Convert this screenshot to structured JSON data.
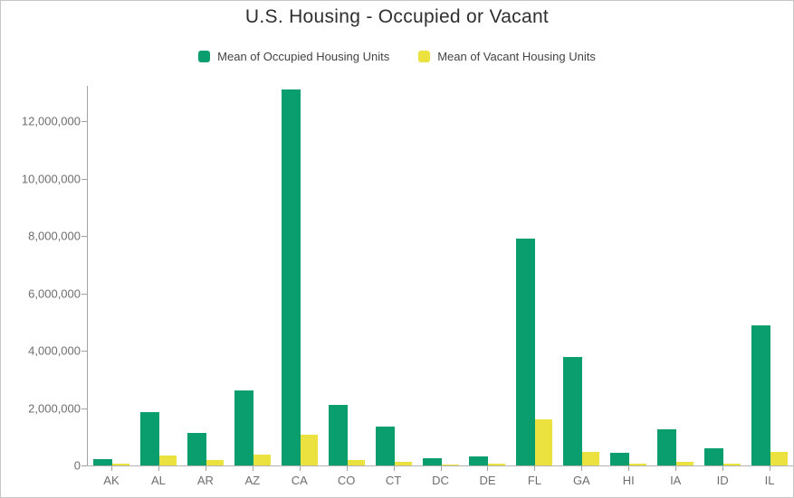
{
  "title": "U.S. Housing - Occupied or Vacant",
  "chart_data": {
    "type": "bar",
    "title": "U.S. Housing - Occupied or Vacant",
    "categories": [
      "AK",
      "AL",
      "AR",
      "AZ",
      "CA",
      "CO",
      "CT",
      "DC",
      "DE",
      "FL",
      "GA",
      "HI",
      "IA",
      "ID",
      "IL"
    ],
    "series": [
      {
        "name": "Mean of Occupied Housing Units",
        "color": "#0a9e6e",
        "values": [
          230000,
          1870000,
          1140000,
          2610000,
          13100000,
          2120000,
          1360000,
          245000,
          320000,
          7910000,
          3790000,
          440000,
          1250000,
          610000,
          4870000
        ]
      },
      {
        "name": "Mean of Vacant Housing Units",
        "color": "#ebe13f",
        "values": [
          55000,
          355000,
          180000,
          380000,
          1080000,
          200000,
          115000,
          30000,
          60000,
          1600000,
          465000,
          72000,
          115000,
          72000,
          470000
        ]
      }
    ],
    "xlabel": "",
    "ylabel": "",
    "ylim": [
      0,
      13230000
    ],
    "y_ticks": [
      {
        "value": 0,
        "label": "0"
      },
      {
        "value": 2000000,
        "label": "2,000,000"
      },
      {
        "value": 4000000,
        "label": "4,000,000"
      },
      {
        "value": 6000000,
        "label": "6,000,000"
      },
      {
        "value": 8000000,
        "label": "8,000,000"
      },
      {
        "value": 10000000,
        "label": "10,000,000"
      },
      {
        "value": 12000000,
        "label": "12,000,000"
      }
    ],
    "grid": false,
    "legend_position": "top-center"
  }
}
